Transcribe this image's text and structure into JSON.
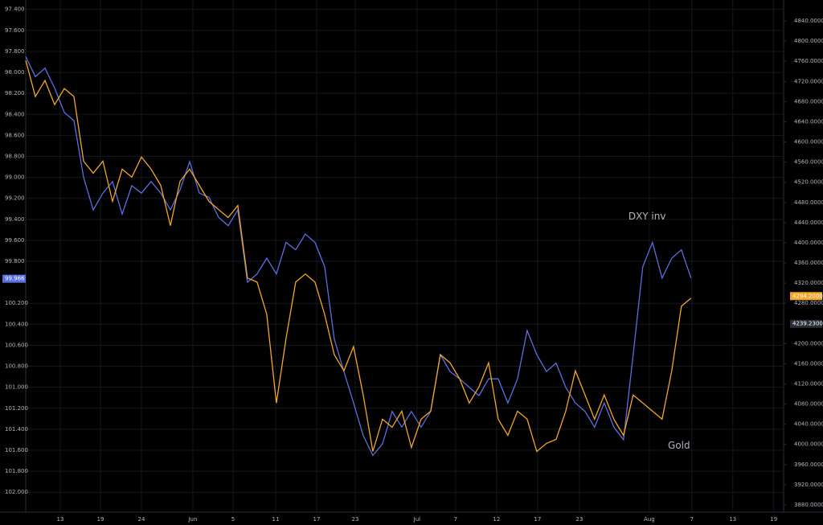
{
  "chart_data": {
    "type": "line",
    "x": [
      0,
      1,
      2,
      3,
      4,
      5,
      6,
      7,
      8,
      9,
      10,
      11,
      12,
      13,
      14,
      15,
      16,
      17,
      18,
      19,
      20,
      21,
      22,
      23,
      24,
      25,
      26,
      27,
      28,
      29,
      30,
      31,
      32,
      33,
      34,
      35,
      36,
      37,
      38,
      39,
      40,
      41,
      42,
      43,
      44,
      45,
      46,
      47,
      48,
      49,
      50,
      51,
      52,
      53,
      54,
      55,
      56,
      57,
      58,
      59,
      60,
      61,
      62,
      63,
      64,
      65,
      66,
      67,
      68,
      69
    ],
    "xlim": [
      0,
      78.6
    ],
    "xticks": [
      {
        "value": 3.58,
        "label": "13"
      },
      {
        "value": 7.75,
        "label": "19"
      },
      {
        "value": 12.0,
        "label": "24"
      },
      {
        "value": 17.33,
        "label": "Jun"
      },
      {
        "value": 21.5,
        "label": "5"
      },
      {
        "value": 25.92,
        "label": "11"
      },
      {
        "value": 30.17,
        "label": "17"
      },
      {
        "value": 34.17,
        "label": "23"
      },
      {
        "value": 40.58,
        "label": "Jul"
      },
      {
        "value": 44.58,
        "label": "7"
      },
      {
        "value": 48.83,
        "label": "12"
      },
      {
        "value": 53.08,
        "label": "17"
      },
      {
        "value": 57.42,
        "label": "23"
      },
      {
        "value": 64.67,
        "label": "Aug"
      },
      {
        "value": 69.08,
        "label": "7"
      },
      {
        "value": 73.33,
        "label": "13"
      },
      {
        "value": 77.58,
        "label": "19"
      }
    ],
    "ylim": [
      97.31,
      102.19
    ],
    "y_inverted": true,
    "yticks": [
      {
        "value": 97.4,
        "label": "97.400"
      },
      {
        "value": 97.6,
        "label": "97.600"
      },
      {
        "value": 97.8,
        "label": "97.800"
      },
      {
        "value": 98.0,
        "label": "98.000"
      },
      {
        "value": 98.2,
        "label": "98.200"
      },
      {
        "value": 98.4,
        "label": "98.400"
      },
      {
        "value": 98.6,
        "label": "98.600"
      },
      {
        "value": 98.8,
        "label": "98.800"
      },
      {
        "value": 99.0,
        "label": "99.000"
      },
      {
        "value": 99.2,
        "label": "99.200"
      },
      {
        "value": 99.4,
        "label": "99.400"
      },
      {
        "value": 99.6,
        "label": "99.600"
      },
      {
        "value": 99.8,
        "label": "99.800"
      },
      {
        "value": 100.2,
        "label": "100.200"
      },
      {
        "value": 100.4,
        "label": "100.400"
      },
      {
        "value": 100.6,
        "label": "100.600"
      },
      {
        "value": 100.8,
        "label": "100.800"
      },
      {
        "value": 101.0,
        "label": "101.000"
      },
      {
        "value": 101.2,
        "label": "101.200"
      },
      {
        "value": 101.4,
        "label": "101.400"
      },
      {
        "value": 101.6,
        "label": "101.600"
      },
      {
        "value": 101.8,
        "label": "101.800"
      },
      {
        "value": 102.0,
        "label": "102.000"
      }
    ],
    "y2lim": [
      3865.6,
      4881.6
    ],
    "y2ticks": [
      {
        "value": 4840,
        "label": "4840.0000"
      },
      {
        "value": 4800,
        "label": "4800.0000"
      },
      {
        "value": 4760,
        "label": "4760.0000"
      },
      {
        "value": 4720,
        "label": "4720.0000"
      },
      {
        "value": 4680,
        "label": "4680.0000"
      },
      {
        "value": 4640,
        "label": "4640.0000"
      },
      {
        "value": 4600,
        "label": "4600.0000"
      },
      {
        "value": 4560,
        "label": "4560.0000"
      },
      {
        "value": 4520,
        "label": "4520.0000"
      },
      {
        "value": 4480,
        "label": "4480.0000"
      },
      {
        "value": 4440,
        "label": "4440.0000"
      },
      {
        "value": 4400,
        "label": "4400.0000"
      },
      {
        "value": 4360,
        "label": "4360.0000"
      },
      {
        "value": 4320,
        "label": "4320.0000"
      },
      {
        "value": 4280,
        "label": "4280.0000"
      },
      {
        "value": 4200,
        "label": "4200.0000"
      },
      {
        "value": 4160,
        "label": "4160.0000"
      },
      {
        "value": 4120,
        "label": "4120.0000"
      },
      {
        "value": 4080,
        "label": "4080.0000"
      },
      {
        "value": 4040,
        "label": "4040.0000"
      },
      {
        "value": 4000,
        "label": "4000.0000"
      },
      {
        "value": 3960,
        "label": "3960.0000"
      },
      {
        "value": 3920,
        "label": "3920.0000"
      },
      {
        "value": 3880,
        "label": "3880.0000"
      }
    ],
    "grid": true,
    "series": [
      {
        "name": "DXY inv",
        "color": "#5b6ee1",
        "values": [
          97.85,
          98.04,
          97.96,
          98.15,
          98.38,
          98.46,
          99.0,
          99.31,
          99.15,
          99.04,
          99.35,
          99.08,
          99.15,
          99.04,
          99.15,
          99.31,
          99.12,
          98.85,
          99.15,
          99.19,
          99.38,
          99.46,
          99.31,
          100.0,
          99.92,
          99.77,
          99.92,
          99.62,
          99.69,
          99.54,
          99.62,
          99.85,
          100.54,
          100.85,
          101.15,
          101.46,
          101.65,
          101.54,
          101.23,
          101.38,
          101.23,
          101.38,
          101.23,
          100.69,
          100.85,
          100.92,
          101.0,
          101.08,
          100.92,
          100.92,
          101.15,
          100.92,
          100.46,
          100.69,
          100.85,
          100.77,
          101.0,
          101.15,
          101.23,
          101.38,
          101.15,
          101.38,
          101.5,
          100.69,
          99.85,
          99.62,
          99.96,
          99.77,
          99.69,
          99.96
        ]
      },
      {
        "name": "Gold",
        "color": "#f5a623",
        "axis": "y2",
        "values": [
          4762,
          4690,
          4722,
          4674,
          4706,
          4690,
          4562,
          4538,
          4562,
          4482,
          4546,
          4530,
          4570,
          4546,
          4514,
          4434,
          4522,
          4546,
          4514,
          4482,
          4466,
          4450,
          4474,
          4330,
          4322,
          4258,
          4082,
          4210,
          4322,
          4338,
          4322,
          4258,
          4178,
          4146,
          4194,
          4098,
          3986,
          4050,
          4034,
          4066,
          3994,
          4050,
          4066,
          4178,
          4162,
          4130,
          4082,
          4114,
          4162,
          4050,
          4018,
          4066,
          4050,
          3986,
          4002,
          4010,
          4066,
          4146,
          4098,
          4050,
          4098,
          4050,
          4018,
          4098,
          4082,
          4066,
          4050,
          4146,
          4274,
          4290
        ]
      }
    ],
    "price_labels": [
      {
        "axis": "y",
        "value": 99.966,
        "label": "99.966",
        "color": "#5b6ee1"
      },
      {
        "axis": "y2",
        "value": 4294.2,
        "label": "4294.2000",
        "color": "#f5a623"
      },
      {
        "axis": "y2",
        "value": 4239.23,
        "label": "4239.2300",
        "color": "#2a2e39"
      }
    ],
    "annotations": [
      {
        "text": "DXY inv",
        "x": 62.5,
        "y": 4452,
        "color": "#f5a623"
      },
      {
        "text": "Gold",
        "x": 66.6,
        "y": 3997,
        "color": "#f5a623"
      }
    ]
  }
}
